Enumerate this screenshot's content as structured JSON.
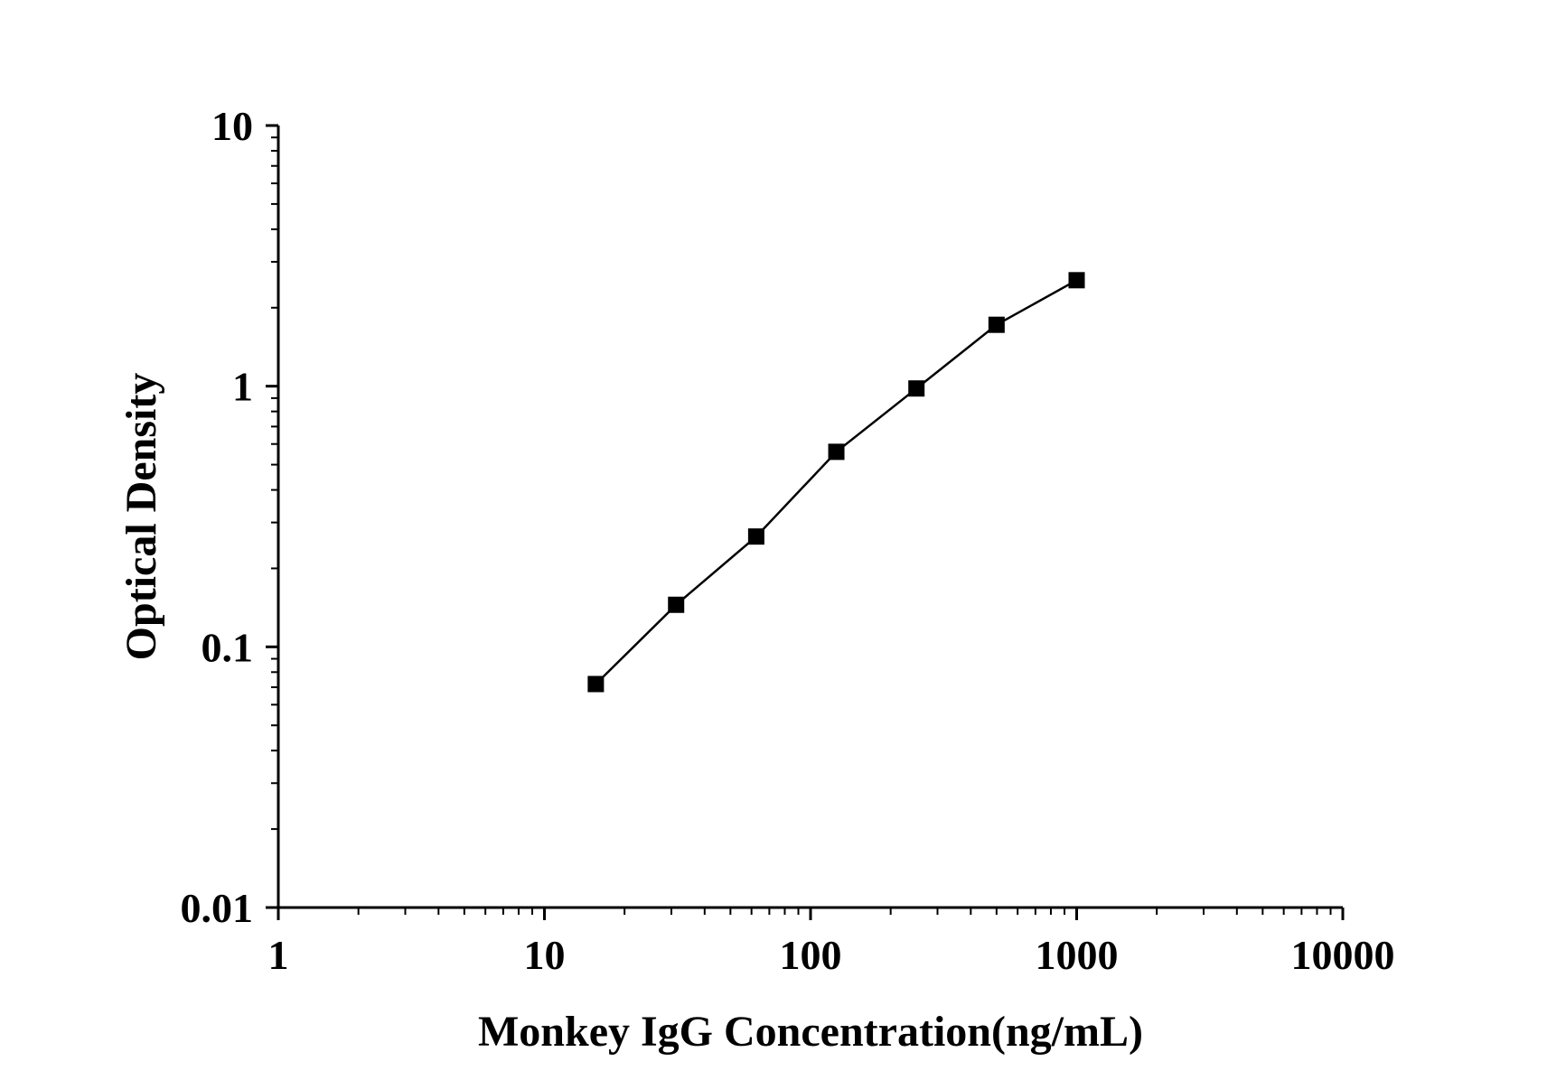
{
  "chart_data": {
    "type": "line",
    "title": "",
    "xlabel": "Monkey IgG Concentration(ng/mL)",
    "ylabel": "Optical Density",
    "xscale": "log",
    "yscale": "log",
    "xlim": [
      1,
      10000
    ],
    "ylim": [
      0.01,
      10
    ],
    "x_tick_labels": [
      "1",
      "10",
      "100",
      "1000",
      "10000"
    ],
    "y_tick_labels": [
      "0.01",
      "0.1",
      "1",
      "10"
    ],
    "grid": false,
    "legend": "none",
    "marker": "square",
    "color": "#000000",
    "series": [
      {
        "x": [
          15.6,
          31.25,
          62.5,
          125,
          250,
          500,
          1000
        ],
        "y": [
          0.072,
          0.145,
          0.265,
          0.56,
          0.98,
          1.72,
          2.55
        ]
      }
    ]
  }
}
